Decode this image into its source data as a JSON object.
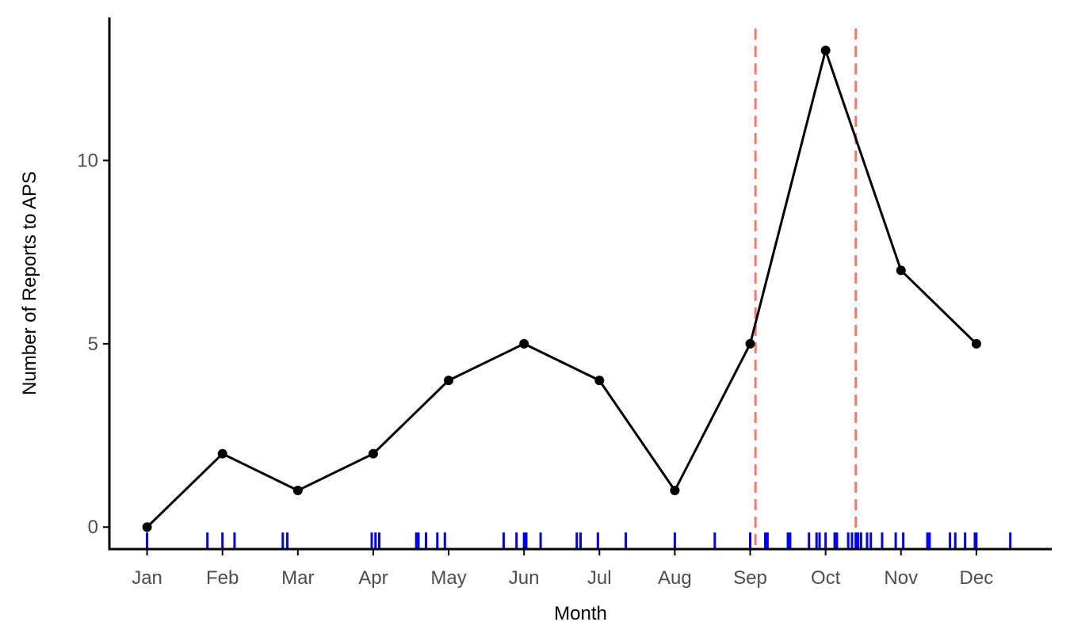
{
  "chart_data": {
    "type": "line",
    "xlabel": "Month",
    "ylabel": "Number of Reports to APS",
    "categories": [
      "Jan",
      "Feb",
      "Mar",
      "Apr",
      "May",
      "Jun",
      "Jul",
      "Aug",
      "Sep",
      "Oct",
      "Nov",
      "Dec"
    ],
    "series": [
      {
        "values": [
          0,
          2,
          1,
          2,
          4,
          5,
          4,
          1,
          5,
          13,
          7,
          5
        ]
      }
    ],
    "ylim": [
      -0.6,
      13.9
    ],
    "xlim": [
      0.5,
      13.0
    ],
    "y_ticks": [
      0,
      5,
      10
    ],
    "grid": false,
    "vlines": [
      9.07,
      10.4
    ],
    "rug_x": [
      1.0,
      1.8,
      2.0,
      2.16,
      2.8,
      2.86,
      3.98,
      4.03,
      4.08,
      4.57,
      4.6,
      4.7,
      4.85,
      4.95,
      5.73,
      5.9,
      6.0,
      6.03,
      6.22,
      6.7,
      6.75,
      6.98,
      7.35,
      8.0,
      8.53,
      9.0,
      9.2,
      9.23,
      9.5,
      9.53,
      9.78,
      9.88,
      9.92,
      10.0,
      10.12,
      10.15,
      10.3,
      10.35,
      10.4,
      10.43,
      10.47,
      10.55,
      10.6,
      10.75,
      10.93,
      11.03,
      11.35,
      11.38,
      11.65,
      11.72,
      11.85,
      11.98,
      12.0,
      12.45
    ],
    "colors": {
      "line": "#000000",
      "vline": "#F8766D",
      "rug": "#0000FF",
      "axis": "#000000"
    }
  }
}
